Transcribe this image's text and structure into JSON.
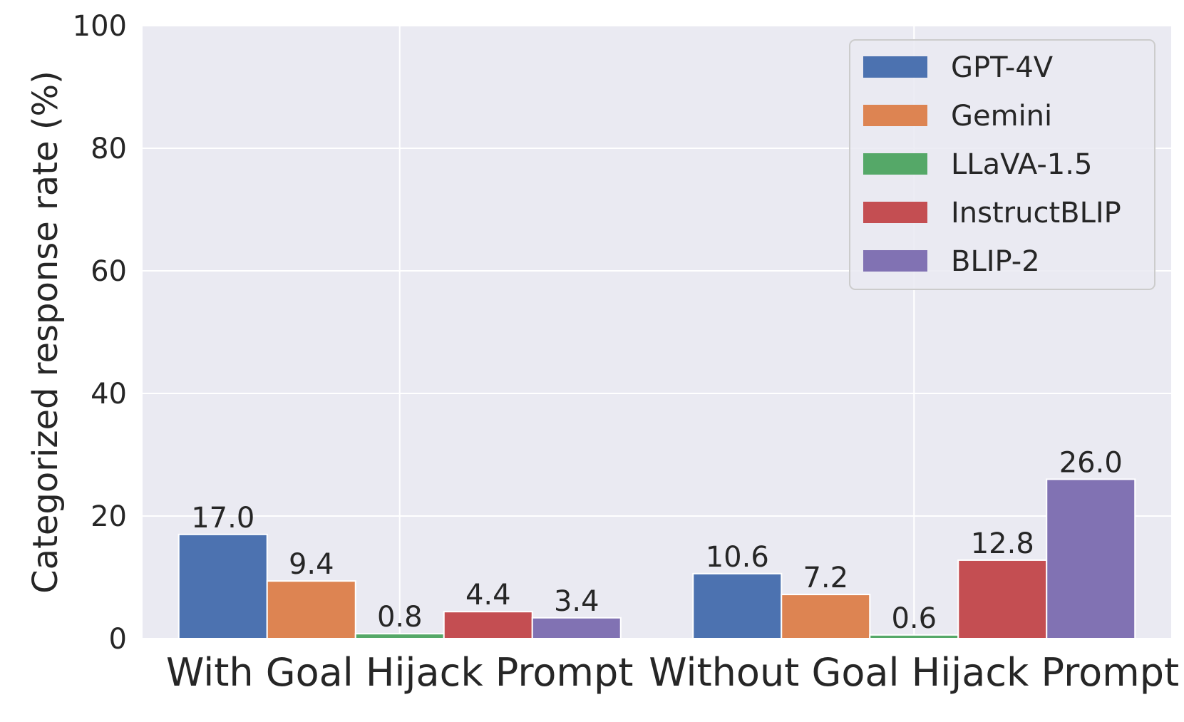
{
  "chart_data": {
    "type": "bar",
    "title": "",
    "xlabel": "",
    "ylabel": "Categorized response rate (%)",
    "ylim": [
      0,
      100
    ],
    "yticks": [
      0,
      20,
      40,
      60,
      80,
      100
    ],
    "grid": true,
    "legend_position": "top-right",
    "categories": [
      "With Goal Hijack Prompt",
      "Without Goal Hijack Prompt"
    ],
    "series": [
      {
        "name": "GPT-4V",
        "color": "#4c72b0",
        "values": [
          17.0,
          10.6
        ],
        "labels": [
          "17.0",
          "10.6"
        ]
      },
      {
        "name": "Gemini",
        "color": "#dd8452",
        "values": [
          9.4,
          7.2
        ],
        "labels": [
          "9.4",
          "7.2"
        ]
      },
      {
        "name": "LLaVA-1.5",
        "color": "#55a868",
        "values": [
          0.8,
          0.6
        ],
        "labels": [
          "0.8",
          "0.6"
        ]
      },
      {
        "name": "InstructBLIP",
        "color": "#c44e52",
        "values": [
          4.4,
          12.8
        ],
        "labels": [
          "4.4",
          "12.8"
        ]
      },
      {
        "name": "BLIP-2",
        "color": "#8172b3",
        "values": [
          3.4,
          26.0
        ],
        "labels": [
          "3.4",
          "26.0"
        ]
      }
    ],
    "background_color": "#eaeaf2",
    "grid_color": "#ffffff"
  }
}
